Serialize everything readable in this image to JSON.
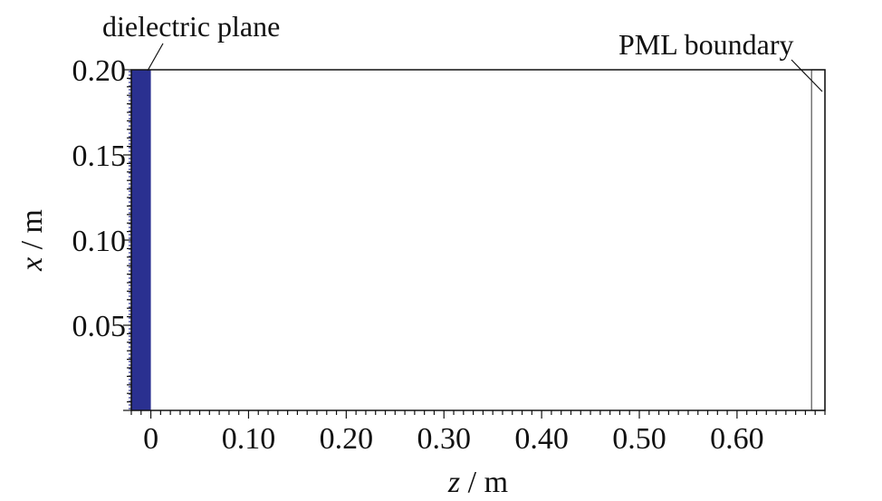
{
  "chart_data": {
    "type": "diagram",
    "xlabel": {
      "var": "z",
      "unit": " / m"
    },
    "ylabel": {
      "var": "x",
      "unit": " / m"
    },
    "x_range": [
      -0.02,
      0.69
    ],
    "y_range": [
      0.0,
      0.2
    ],
    "x_ticks": [
      {
        "value": 0.0,
        "label": "0"
      },
      {
        "value": 0.1,
        "label": "0.10"
      },
      {
        "value": 0.2,
        "label": "0.20"
      },
      {
        "value": 0.3,
        "label": "0.30"
      },
      {
        "value": 0.4,
        "label": "0.40"
      },
      {
        "value": 0.5,
        "label": "0.50"
      },
      {
        "value": 0.6,
        "label": "0.60"
      }
    ],
    "y_ticks": [
      {
        "value": 0.05,
        "label": "0.05"
      },
      {
        "value": 0.1,
        "label": "0.10"
      },
      {
        "value": 0.15,
        "label": "0.15"
      },
      {
        "value": 0.2,
        "label": "0.20"
      }
    ],
    "regions": [
      {
        "name": "dielectric plane",
        "z_range": [
          -0.02,
          0.0
        ],
        "x_range": [
          0.0,
          0.2
        ],
        "fill": "#2a3090"
      },
      {
        "name": "PML boundary",
        "z_range": [
          0.68,
          0.69
        ],
        "x_range": [
          0.0,
          0.2
        ],
        "stroke": "#555555"
      }
    ],
    "annotations": [
      {
        "text": "dielectric plane",
        "target": "dielectric plane"
      },
      {
        "text": "PML boundary",
        "target": "PML boundary"
      }
    ]
  }
}
